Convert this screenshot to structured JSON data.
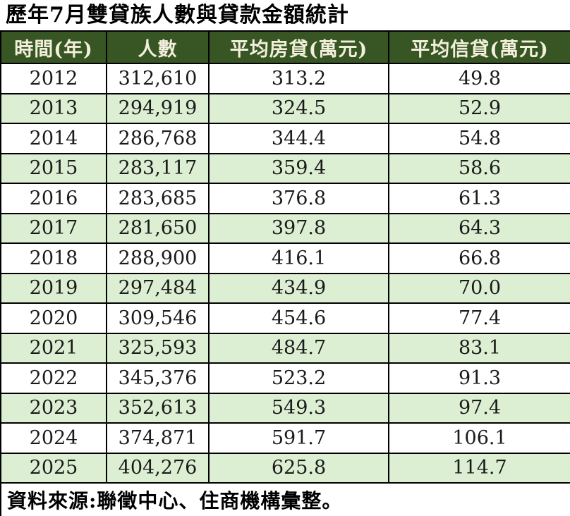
{
  "title": "歷年7月雙貸族人數與貸款金額統計",
  "source_note": "資料來源:聯徵中心、住商機構彙整。",
  "colors": {
    "header_bg": "#375623",
    "header_text": "#f2efdc",
    "row_bg": "#ffffff",
    "row_alt_bg": "#dcefd3",
    "border": "#000000"
  },
  "chart_data": {
    "type": "table",
    "title": "歷年7月雙貸族人數與貸款金額統計",
    "columns": [
      "時間(年)",
      "人數",
      "平均房貸(萬元)",
      "平均信貸(萬元)"
    ],
    "rows": [
      [
        "2012",
        "312,610",
        "313.2",
        "49.8"
      ],
      [
        "2013",
        "294,919",
        "324.5",
        "52.9"
      ],
      [
        "2014",
        "286,768",
        "344.4",
        "54.8"
      ],
      [
        "2015",
        "283,117",
        "359.4",
        "58.6"
      ],
      [
        "2016",
        "283,685",
        "376.8",
        "61.3"
      ],
      [
        "2017",
        "281,650",
        "397.8",
        "64.3"
      ],
      [
        "2018",
        "288,900",
        "416.1",
        "66.8"
      ],
      [
        "2019",
        "297,484",
        "434.9",
        "70.0"
      ],
      [
        "2020",
        "309,546",
        "454.6",
        "77.4"
      ],
      [
        "2021",
        "325,593",
        "484.7",
        "83.1"
      ],
      [
        "2022",
        "345,376",
        "523.2",
        "91.3"
      ],
      [
        "2023",
        "352,613",
        "549.3",
        "97.4"
      ],
      [
        "2024",
        "374,871",
        "591.7",
        "106.1"
      ],
      [
        "2025",
        "404,276",
        "625.8",
        "114.7"
      ]
    ],
    "years": [
      2012,
      2013,
      2014,
      2015,
      2016,
      2017,
      2018,
      2019,
      2020,
      2021,
      2022,
      2023,
      2024,
      2025
    ],
    "people_count": [
      312610,
      294919,
      286768,
      283117,
      283685,
      281650,
      288900,
      297484,
      309546,
      325593,
      345376,
      352613,
      374871,
      404276
    ],
    "avg_mortgage_wan": [
      313.2,
      324.5,
      344.4,
      359.4,
      376.8,
      397.8,
      416.1,
      434.9,
      454.6,
      484.7,
      523.2,
      549.3,
      591.7,
      625.8
    ],
    "avg_credit_wan": [
      49.8,
      52.9,
      54.8,
      58.6,
      61.3,
      64.3,
      66.8,
      70.0,
      77.4,
      83.1,
      91.3,
      97.4,
      106.1,
      114.7
    ],
    "footer": "資料來源:聯徵中心、住商機構彙整。"
  }
}
